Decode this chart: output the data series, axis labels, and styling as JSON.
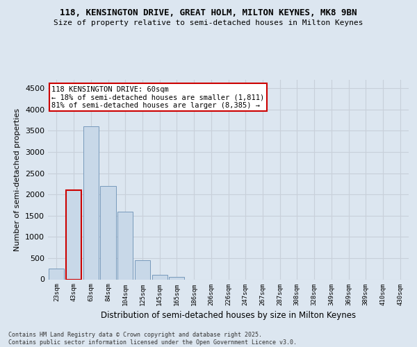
{
  "title1": "118, KENSINGTON DRIVE, GREAT HOLM, MILTON KEYNES, MK8 9BN",
  "title2": "Size of property relative to semi-detached houses in Milton Keynes",
  "xlabel": "Distribution of semi-detached houses by size in Milton Keynes",
  "ylabel": "Number of semi-detached properties",
  "annotation_title": "118 KENSINGTON DRIVE: 60sqm",
  "annotation_line2": "← 18% of semi-detached houses are smaller (1,811)",
  "annotation_line3": "81% of semi-detached houses are larger (8,385) →",
  "footnote1": "Contains HM Land Registry data © Crown copyright and database right 2025.",
  "footnote2": "Contains public sector information licensed under the Open Government Licence v3.0.",
  "categories": [
    "23sqm",
    "43sqm",
    "63sqm",
    "84sqm",
    "104sqm",
    "125sqm",
    "145sqm",
    "165sqm",
    "186sqm",
    "206sqm",
    "226sqm",
    "247sqm",
    "267sqm",
    "287sqm",
    "308sqm",
    "328sqm",
    "349sqm",
    "369sqm",
    "389sqm",
    "410sqm",
    "430sqm"
  ],
  "values": [
    250,
    2100,
    3600,
    2200,
    1600,
    450,
    110,
    60,
    0,
    0,
    0,
    0,
    0,
    0,
    0,
    0,
    0,
    0,
    0,
    0,
    0
  ],
  "bar_color": "#c8d8e8",
  "bar_edge_color": "#7799bb",
  "highlight_bar_index": 1,
  "highlight_bar_edge_color": "#cc0000",
  "annotation_box_edge_color": "#cc0000",
  "grid_color": "#c8d0da",
  "background_color": "#dce6f0",
  "ylim": [
    0,
    4700
  ],
  "yticks": [
    0,
    500,
    1000,
    1500,
    2000,
    2500,
    3000,
    3500,
    4000,
    4500
  ]
}
